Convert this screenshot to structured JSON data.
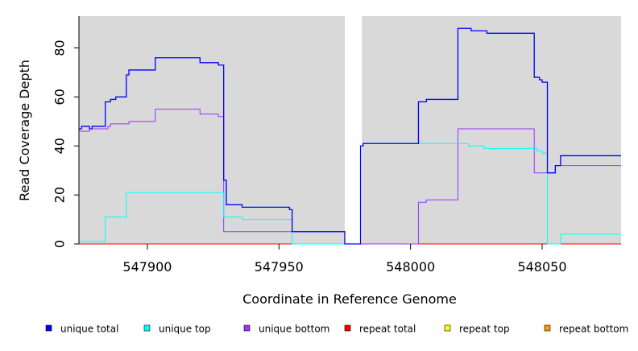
{
  "chart_data": {
    "type": "line",
    "xlabel": "Coordinate in Reference Genome",
    "ylabel": "Read Coverage Depth",
    "xlim": [
      547874,
      548080
    ],
    "ylim": [
      0,
      93
    ],
    "x_ticks": [
      547900,
      547950,
      548000,
      548050
    ],
    "x_tick_labels": [
      "547900",
      "547950",
      "548000",
      "548050"
    ],
    "y_ticks": [
      0,
      20,
      40,
      60,
      80
    ],
    "y_tick_labels": [
      "0",
      "20",
      "40",
      "60",
      "80"
    ],
    "grid": false,
    "background_color": "#d9d9d9",
    "gap_regions": [
      [
        547975,
        547981.5
      ]
    ],
    "legend_position": "bottom",
    "legend": [
      {
        "name": "unique total",
        "color": "#0000ff"
      },
      {
        "name": "unique top",
        "color": "#00ffff"
      },
      {
        "name": "unique bottom",
        "color": "#9933ff"
      },
      {
        "name": "repeat total",
        "color": "#ff0000"
      },
      {
        "name": "repeat top",
        "color": "#ffff00"
      },
      {
        "name": "repeat bottom",
        "color": "#ff9900"
      }
    ],
    "series": [
      {
        "name": "unique total",
        "color": "#0000ff",
        "points": [
          [
            547874,
            47
          ],
          [
            547875,
            48
          ],
          [
            547877,
            48
          ],
          [
            547878,
            47
          ],
          [
            547879,
            48
          ],
          [
            547884,
            58
          ],
          [
            547886,
            59
          ],
          [
            547888,
            60
          ],
          [
            547892,
            69
          ],
          [
            547893,
            71
          ],
          [
            547903,
            76
          ],
          [
            547920,
            74
          ],
          [
            547927,
            73
          ],
          [
            547929,
            26
          ],
          [
            547930,
            16
          ],
          [
            547936,
            15
          ],
          [
            547954,
            14
          ],
          [
            547955,
            5
          ],
          [
            547975,
            0
          ],
          [
            547981,
            40
          ],
          [
            547982,
            41
          ],
          [
            548003,
            58
          ],
          [
            548006,
            59
          ],
          [
            548018,
            88
          ],
          [
            548023,
            87
          ],
          [
            548029,
            86
          ],
          [
            548047,
            68
          ],
          [
            548049,
            67
          ],
          [
            548050,
            66
          ],
          [
            548052,
            29
          ],
          [
            548055,
            32
          ],
          [
            548057,
            36
          ],
          [
            548080,
            36
          ]
        ]
      },
      {
        "name": "unique top",
        "color": "#00ffff",
        "points": [
          [
            547874,
            1
          ],
          [
            547884,
            11
          ],
          [
            547892,
            21
          ],
          [
            547922,
            21
          ],
          [
            547929,
            11
          ],
          [
            547936,
            10
          ],
          [
            547955,
            0
          ],
          [
            547975,
            0
          ],
          [
            547981,
            40
          ],
          [
            547982,
            41
          ],
          [
            548022,
            40
          ],
          [
            548028,
            39
          ],
          [
            548048,
            38
          ],
          [
            548050,
            37
          ],
          [
            548052,
            0
          ],
          [
            548057,
            4
          ],
          [
            548080,
            4
          ]
        ]
      },
      {
        "name": "unique bottom",
        "color": "#9933ff",
        "points": [
          [
            547874,
            46
          ],
          [
            547878,
            47
          ],
          [
            547879,
            47
          ],
          [
            547885,
            48
          ],
          [
            547886,
            49
          ],
          [
            547893,
            50
          ],
          [
            547903,
            55
          ],
          [
            547920,
            53
          ],
          [
            547927,
            52
          ],
          [
            547929,
            5
          ],
          [
            547955,
            5
          ],
          [
            547975,
            0
          ],
          [
            548003,
            17
          ],
          [
            548006,
            18
          ],
          [
            548018,
            47
          ],
          [
            548047,
            29
          ],
          [
            548052,
            29
          ],
          [
            548055,
            32
          ],
          [
            548080,
            32
          ]
        ]
      },
      {
        "name": "repeat total",
        "color": "#ff0000",
        "points": [
          [
            547874,
            0
          ],
          [
            548080,
            0
          ]
        ]
      },
      {
        "name": "repeat top",
        "color": "#ffff00",
        "points": [
          [
            547874,
            0
          ],
          [
            548080,
            0
          ]
        ]
      },
      {
        "name": "repeat bottom",
        "color": "#ff9900",
        "points": [
          [
            547874,
            0
          ],
          [
            548080,
            0
          ]
        ]
      }
    ]
  }
}
